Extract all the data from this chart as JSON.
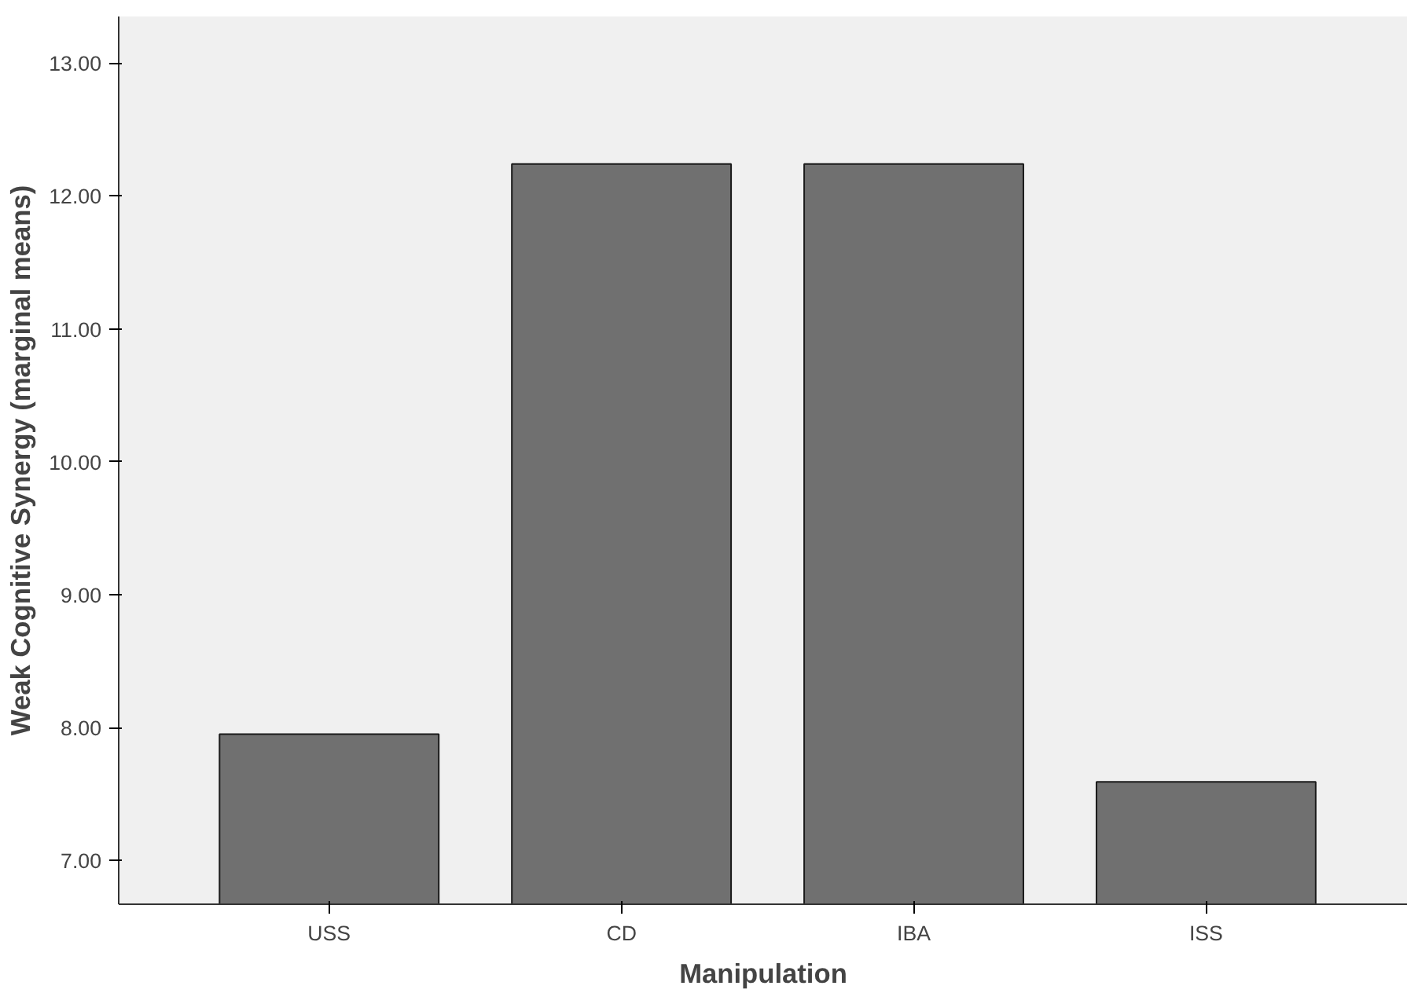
{
  "chart_data": {
    "type": "bar",
    "xlabel": "Manipulation",
    "ylabel": "Weak Cognitive Synergy (marginal means)",
    "categories": [
      "USS",
      "CD",
      "IBA",
      "ISS"
    ],
    "values": [
      7.95,
      12.24,
      12.24,
      7.59
    ],
    "color": "#707070",
    "ylim": [
      6.67,
      13.35
    ],
    "yticks": [
      {
        "value": 7,
        "label": "7.00"
      },
      {
        "value": 8,
        "label": "8.00"
      },
      {
        "value": 9,
        "label": "9.00"
      },
      {
        "value": 10,
        "label": "10.00"
      },
      {
        "value": 11,
        "label": "11.00"
      },
      {
        "value": 12,
        "label": "12.00"
      },
      {
        "value": 13,
        "label": "13.00"
      }
    ],
    "grid": false
  }
}
